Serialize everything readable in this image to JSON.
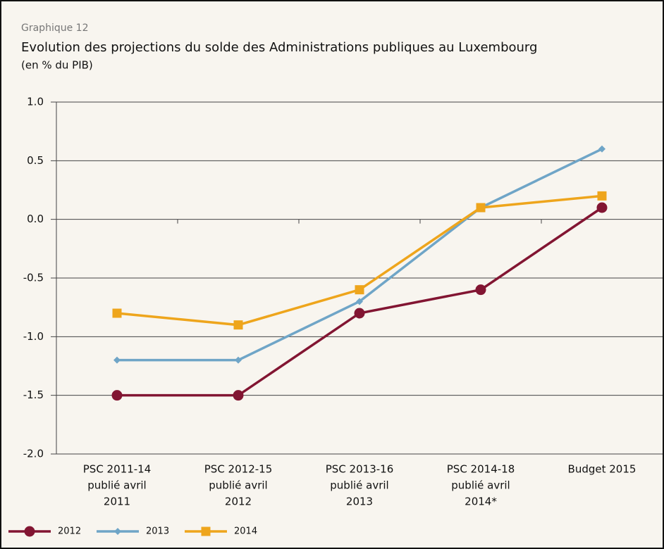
{
  "chart_data": {
    "type": "line",
    "kicker": "Graphique 12",
    "title": "Evolution des projections du solde des Administrations publiques au Luxembourg",
    "subtitle": "(en % du PIB)",
    "categories": [
      [
        "PSC 2011-14",
        "publié avril",
        "2011"
      ],
      [
        "PSC 2012-15",
        "publié avril",
        "2012"
      ],
      [
        "PSC 2013-16",
        "publié avril",
        "2013"
      ],
      [
        "PSC 2014-18",
        "publié avril",
        "2014*"
      ],
      [
        "Budget 2015"
      ]
    ],
    "series": [
      {
        "name": "2012",
        "color": "#821532",
        "marker": "circle",
        "values": [
          -1.5,
          -1.5,
          -0.8,
          -0.6,
          0.1
        ]
      },
      {
        "name": "2013",
        "color": "#6fa5c7",
        "marker": "diamond",
        "values": [
          -1.2,
          -1.2,
          -0.7,
          0.1,
          0.6
        ]
      },
      {
        "name": "2014",
        "color": "#eea51c",
        "marker": "square",
        "values": [
          -0.8,
          -0.9,
          -0.6,
          0.1,
          0.2
        ]
      }
    ],
    "ylim": [
      -2,
      1
    ],
    "yticks": [
      {
        "value": -2,
        "label": "-2.0"
      },
      -1.5,
      {
        "value": -1,
        "label": "-1.0"
      },
      -0.5,
      {
        "value": 0,
        "label": "0.0"
      },
      0.5,
      {
        "value": 1,
        "label": "1.0"
      }
    ],
    "grid": true,
    "legend": "bottom"
  }
}
